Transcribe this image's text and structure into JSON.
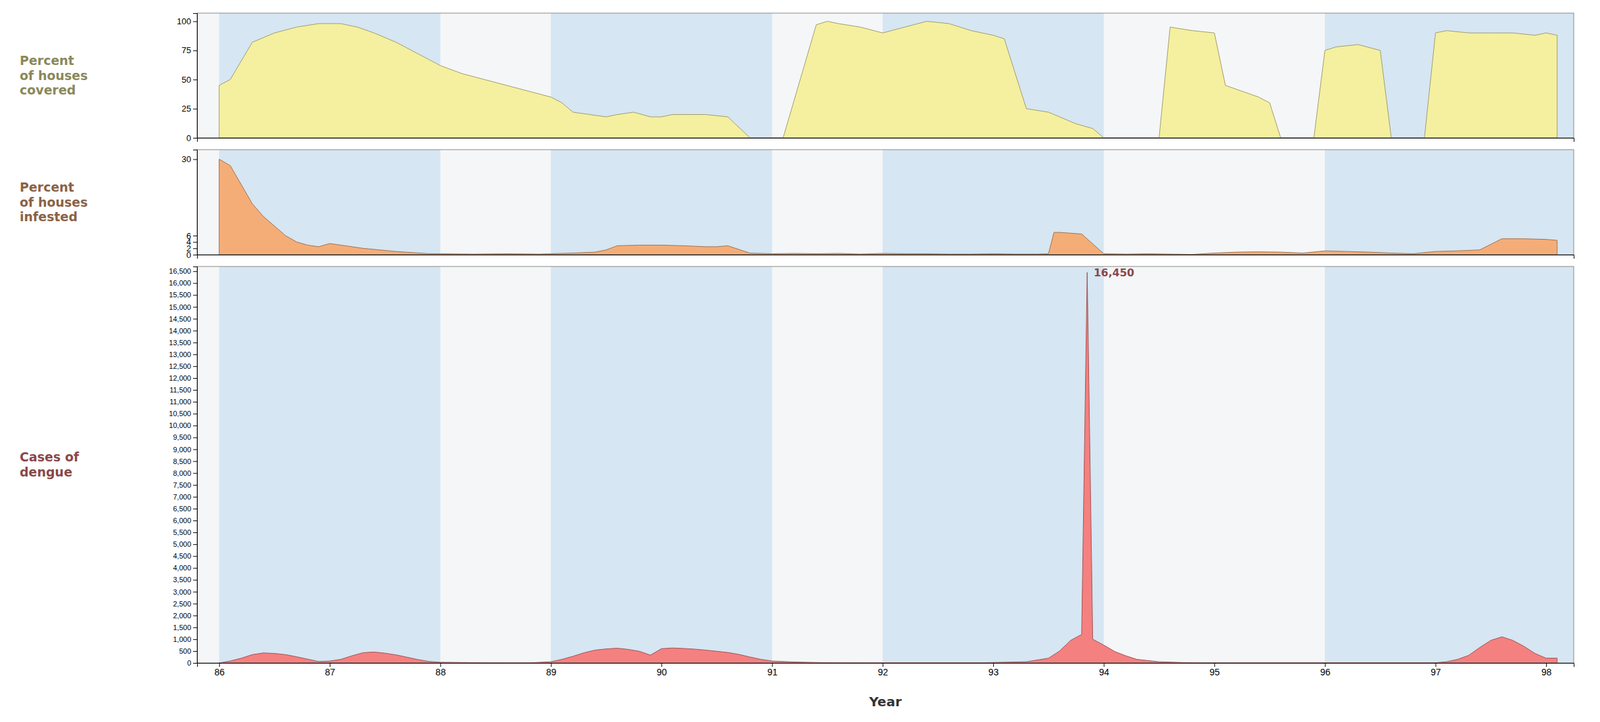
{
  "chart_data": [
    {
      "type": "area",
      "title": "Percent\nof houses\ncovered",
      "color": "#f5f0a0",
      "tick_labels": "y",
      "xlim": [
        1985.8,
        1998.25
      ],
      "ylim": [
        0,
        107
      ],
      "yticks": [
        0,
        25,
        50,
        75,
        100
      ],
      "bands": [
        [
          1986.0,
          1988.0
        ],
        [
          1989.0,
          1991.0
        ],
        [
          1992.0,
          1994.0
        ],
        [
          1996.0,
          1998.25
        ]
      ],
      "x": [
        1986.0,
        1986.1,
        1986.3,
        1986.5,
        1986.7,
        1986.9,
        1987.0,
        1987.1,
        1987.25,
        1987.4,
        1987.6,
        1987.8,
        1988.0,
        1988.2,
        1988.4,
        1988.6,
        1988.8,
        1989.0,
        1989.1,
        1989.2,
        1989.35,
        1989.5,
        1989.6,
        1989.75,
        1989.9,
        1990.0,
        1990.1,
        1990.15,
        1990.2,
        1990.4,
        1990.6,
        1990.8,
        1991.0,
        1991.1,
        1991.4,
        1991.5,
        1991.6,
        1991.8,
        1992.0,
        1992.2,
        1992.4,
        1992.6,
        1992.8,
        1993.0,
        1993.1,
        1993.3,
        1993.5,
        1993.6,
        1993.75,
        1993.9,
        1994.0,
        1994.1,
        1994.3,
        1994.5,
        1994.6,
        1994.8,
        1995.0,
        1995.1,
        1995.4,
        1995.5,
        1995.6,
        1995.75,
        1995.9,
        1996.0,
        1996.1,
        1996.3,
        1996.5,
        1996.6,
        1996.7,
        1996.9,
        1997.0,
        1997.1,
        1997.3,
        1997.5,
        1997.7,
        1997.9,
        1998.0,
        1998.1
      ],
      "values": [
        45,
        50,
        82,
        90,
        95,
        98,
        98,
        98,
        95,
        90,
        82,
        72,
        62,
        55,
        50,
        45,
        40,
        35,
        30,
        22,
        20,
        18,
        20,
        22,
        18,
        18,
        20,
        20,
        20,
        20,
        18,
        0,
        0,
        0,
        97,
        100,
        98,
        95,
        90,
        95,
        100,
        98,
        92,
        88,
        85,
        25,
        22,
        18,
        12,
        8,
        0,
        0,
        0,
        0,
        95,
        92,
        90,
        45,
        35,
        30,
        0,
        0,
        0,
        75,
        78,
        80,
        75,
        0,
        0,
        0,
        90,
        92,
        90,
        90,
        90,
        88,
        90,
        88
      ]
    },
    {
      "type": "area",
      "title": "Percent\nof houses\ninfested",
      "color": "#f5ad78",
      "tick_labels": "y",
      "xlim": [
        1985.8,
        1998.25
      ],
      "ylim": [
        0,
        33
      ],
      "yticks": [
        0,
        2,
        4,
        6,
        30
      ],
      "bands": [
        [
          1986.0,
          1988.0
        ],
        [
          1989.0,
          1991.0
        ],
        [
          1992.0,
          1994.0
        ],
        [
          1996.0,
          1998.25
        ]
      ],
      "x": [
        1986.0,
        1986.1,
        1986.2,
        1986.3,
        1986.4,
        1986.5,
        1986.6,
        1986.7,
        1986.8,
        1986.9,
        1987.0,
        1987.3,
        1987.6,
        1987.9,
        1988.0,
        1988.3,
        1988.6,
        1988.9,
        1989.0,
        1989.2,
        1989.4,
        1989.5,
        1989.6,
        1989.8,
        1990.0,
        1990.2,
        1990.4,
        1990.5,
        1990.6,
        1990.8,
        1991.0,
        1991.2,
        1991.4,
        1991.6,
        1991.8,
        1992.0,
        1992.2,
        1992.4,
        1992.6,
        1992.8,
        1993.0,
        1993.2,
        1993.4,
        1993.5,
        1993.55,
        1993.6,
        1993.8,
        1994.0,
        1994.2,
        1994.4,
        1994.6,
        1994.8,
        1995.0,
        1995.2,
        1995.4,
        1995.6,
        1995.8,
        1996.0,
        1996.2,
        1996.4,
        1996.6,
        1996.8,
        1997.0,
        1997.2,
        1997.4,
        1997.6,
        1997.8,
        1998.0,
        1998.1
      ],
      "values": [
        30,
        28,
        22,
        16,
        12,
        9,
        6,
        4,
        3,
        2.5,
        3.5,
        2.0,
        1.0,
        0.3,
        0.3,
        0.2,
        0.3,
        0.2,
        0.3,
        0.5,
        0.8,
        1.5,
        2.8,
        3.0,
        3.0,
        2.8,
        2.5,
        2.5,
        2.8,
        0.5,
        0.3,
        0.4,
        0.3,
        0.4,
        0.2,
        0.4,
        0.3,
        0.3,
        0.2,
        0.2,
        0.3,
        0.2,
        0.2,
        0.3,
        7.0,
        7.0,
        6.5,
        0.3,
        0.2,
        0.3,
        0.2,
        0.1,
        0.5,
        0.8,
        0.9,
        0.8,
        0.5,
        1.2,
        1.0,
        0.8,
        0.5,
        0.3,
        1.0,
        1.2,
        1.5,
        5.0,
        5.0,
        4.8,
        4.5
      ]
    },
    {
      "type": "area",
      "title": "Cases of\ndengue",
      "color": "#f58080",
      "xlabel": "Year",
      "xlim": [
        1985.8,
        1998.25
      ],
      "xticks": [
        {
          "value": 1986,
          "label": "86"
        },
        {
          "value": 1987,
          "label": "87"
        },
        {
          "value": 1988,
          "label": "88"
        },
        {
          "value": 1989,
          "label": "89"
        },
        {
          "value": 1990,
          "label": "90"
        },
        {
          "value": 1991,
          "label": "91"
        },
        {
          "value": 1992,
          "label": "92"
        },
        {
          "value": 1993,
          "label": "93"
        },
        {
          "value": 1994,
          "label": "94"
        },
        {
          "value": 1995,
          "label": "95"
        },
        {
          "value": 1996,
          "label": "96"
        },
        {
          "value": 1997,
          "label": "97"
        },
        {
          "value": 1998,
          "label": "98"
        }
      ],
      "ylim": [
        0,
        16700
      ],
      "yticks": [
        0,
        500,
        {
          "value": 1000,
          "label": "1,000"
        },
        {
          "value": 1500,
          "label": "1,500"
        },
        {
          "value": 2000,
          "label": "2,000"
        },
        {
          "value": 2500,
          "label": "2,500"
        },
        {
          "value": 3000,
          "label": "3,000"
        },
        {
          "value": 3500,
          "label": "3,500"
        },
        {
          "value": 4000,
          "label": "4,000"
        },
        {
          "value": 4500,
          "label": "4,500"
        },
        {
          "value": 5000,
          "label": "5,000"
        },
        {
          "value": 5500,
          "label": "5,500"
        },
        {
          "value": 6000,
          "label": "6,000"
        },
        {
          "value": 6500,
          "label": "6,500"
        },
        {
          "value": 7000,
          "label": "7,000"
        },
        {
          "value": 7500,
          "label": "7,500"
        },
        {
          "value": 8000,
          "label": "8,000"
        },
        {
          "value": 8500,
          "label": "8,500"
        },
        {
          "value": 9000,
          "label": "9,000"
        },
        {
          "value": 9500,
          "label": "9,500"
        },
        {
          "value": 10000,
          "label": "10,000"
        },
        {
          "value": 10500,
          "label": "10,500"
        },
        {
          "value": 11000,
          "label": "11,000"
        },
        {
          "value": 11500,
          "label": "11,500"
        },
        {
          "value": 12000,
          "label": "12,000"
        },
        {
          "value": 12500,
          "label": "12,500"
        },
        {
          "value": 13000,
          "label": "13,000"
        },
        {
          "value": 13500,
          "label": "13,500"
        },
        {
          "value": 14000,
          "label": "14,000"
        },
        {
          "value": 14500,
          "label": "14,500"
        },
        {
          "value": 15000,
          "label": "15,000"
        },
        {
          "value": 15500,
          "label": "15,500"
        },
        {
          "value": 16000,
          "label": "16,000"
        },
        {
          "value": 16500,
          "label": "16,500"
        }
      ],
      "bands": [
        [
          1986.0,
          1988.0
        ],
        [
          1989.0,
          1991.0
        ],
        [
          1992.0,
          1994.0
        ],
        [
          1996.0,
          1998.25
        ]
      ],
      "annotations": [
        {
          "text": "16,450",
          "x": 1993.85,
          "y": 16450
        }
      ],
      "x": [
        1986.0,
        1986.1,
        1986.2,
        1986.3,
        1986.4,
        1986.5,
        1986.6,
        1986.7,
        1986.8,
        1986.9,
        1987.0,
        1987.1,
        1987.2,
        1987.3,
        1987.4,
        1987.5,
        1987.6,
        1987.7,
        1987.8,
        1987.9,
        1988.0,
        1988.2,
        1988.4,
        1988.6,
        1988.8,
        1989.0,
        1989.1,
        1989.2,
        1989.3,
        1989.4,
        1989.5,
        1989.6,
        1989.7,
        1989.8,
        1989.9,
        1990.0,
        1990.1,
        1990.2,
        1990.3,
        1990.4,
        1990.5,
        1990.6,
        1990.7,
        1990.8,
        1990.9,
        1991.0,
        1991.2,
        1991.4,
        1991.6,
        1991.8,
        1992.0,
        1992.3,
        1992.6,
        1992.9,
        1993.0,
        1993.3,
        1993.5,
        1993.6,
        1993.7,
        1993.8,
        1993.85,
        1993.9,
        1994.0,
        1994.1,
        1994.2,
        1994.3,
        1994.5,
        1994.7,
        1994.9,
        1995.0,
        1995.3,
        1995.6,
        1995.9,
        1996.0,
        1996.3,
        1996.6,
        1996.9,
        1997.0,
        1997.1,
        1997.2,
        1997.3,
        1997.4,
        1997.5,
        1997.6,
        1997.7,
        1997.8,
        1997.9,
        1998.0,
        1998.1
      ],
      "values": [
        0,
        80,
        200,
        350,
        420,
        400,
        350,
        260,
        160,
        60,
        80,
        150,
        300,
        430,
        460,
        410,
        340,
        240,
        140,
        60,
        30,
        20,
        10,
        5,
        5,
        50,
        150,
        280,
        430,
        540,
        590,
        620,
        570,
        490,
        330,
        600,
        630,
        610,
        580,
        540,
        490,
        440,
        360,
        250,
        150,
        80,
        40,
        20,
        10,
        5,
        5,
        5,
        5,
        5,
        20,
        50,
        200,
        500,
        950,
        1200,
        16450,
        1000,
        750,
        480,
        300,
        150,
        50,
        20,
        5,
        5,
        5,
        5,
        5,
        5,
        5,
        5,
        5,
        10,
        50,
        150,
        320,
        650,
        950,
        1100,
        950,
        700,
        400,
        200,
        200
      ]
    }
  ]
}
